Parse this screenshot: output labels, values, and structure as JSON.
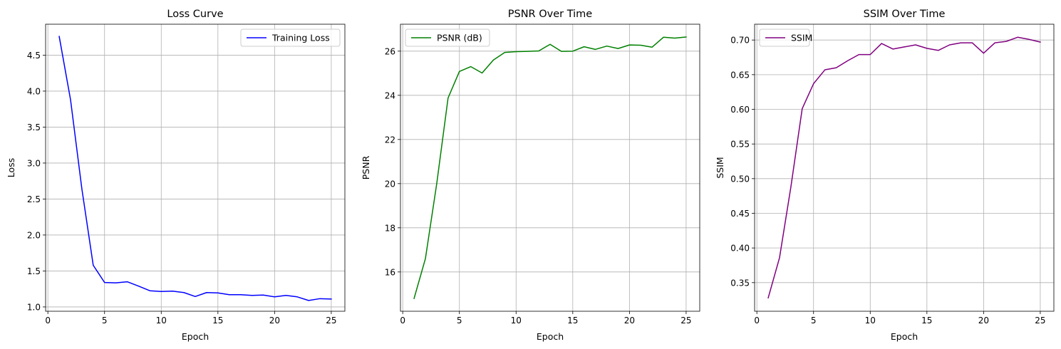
{
  "chart_data": [
    {
      "type": "line",
      "title": "Loss Curve",
      "xlabel": "Epoch",
      "ylabel": "Loss",
      "xlim": [
        -0.2,
        26.2
      ],
      "ylim": [
        0.94,
        4.93
      ],
      "xticks": [
        0,
        5,
        10,
        15,
        20,
        25
      ],
      "xtick_labels": [
        "0",
        "5",
        "10",
        "15",
        "20",
        "25"
      ],
      "yticks": [
        1.0,
        1.5,
        2.0,
        2.5,
        3.0,
        3.5,
        4.0,
        4.5
      ],
      "ytick_labels": [
        "1.0",
        "1.5",
        "2.0",
        "2.5",
        "3.0",
        "3.5",
        "4.0",
        "4.5"
      ],
      "grid": true,
      "legend": "upper-right",
      "series": [
        {
          "name": "Training Loss",
          "color": "#0000ff",
          "x": [
            1,
            2,
            3,
            4,
            5,
            6,
            7,
            8,
            9,
            10,
            11,
            12,
            13,
            14,
            15,
            16,
            17,
            18,
            19,
            20,
            21,
            22,
            23,
            24,
            25
          ],
          "values": [
            4.76,
            3.88,
            2.64,
            1.58,
            1.34,
            1.335,
            1.35,
            1.29,
            1.225,
            1.215,
            1.22,
            1.2,
            1.145,
            1.2,
            1.195,
            1.17,
            1.17,
            1.16,
            1.165,
            1.14,
            1.16,
            1.14,
            1.09,
            1.115,
            1.11
          ]
        }
      ]
    },
    {
      "type": "line",
      "title": "PSNR Over Time",
      "xlabel": "Epoch",
      "ylabel": "PSNR",
      "xlim": [
        -0.2,
        26.2
      ],
      "ylim": [
        14.22,
        27.22
      ],
      "xticks": [
        0,
        5,
        10,
        15,
        20,
        25
      ],
      "xtick_labels": [
        "0",
        "5",
        "10",
        "15",
        "20",
        "25"
      ],
      "yticks": [
        16,
        18,
        20,
        22,
        24,
        26
      ],
      "ytick_labels": [
        "16",
        "18",
        "20",
        "22",
        "24",
        "26"
      ],
      "grid": true,
      "legend": "upper-left",
      "series": [
        {
          "name": "PSNR (dB)",
          "color": "#008000",
          "x": [
            1,
            2,
            3,
            4,
            5,
            6,
            7,
            8,
            9,
            10,
            11,
            12,
            13,
            14,
            15,
            16,
            17,
            18,
            19,
            20,
            21,
            22,
            23,
            24,
            25
          ],
          "values": [
            14.8,
            16.6,
            20.0,
            23.88,
            25.08,
            25.3,
            25.01,
            25.6,
            25.94,
            25.98,
            25.99,
            26.01,
            26.31,
            25.99,
            26.0,
            26.2,
            26.08,
            26.23,
            26.12,
            26.28,
            26.27,
            26.18,
            26.63,
            26.59,
            26.64
          ]
        }
      ]
    },
    {
      "type": "line",
      "title": "SSIM Over Time",
      "xlabel": "Epoch",
      "ylabel": "SSIM",
      "xlim": [
        -0.2,
        26.2
      ],
      "ylim": [
        0.3087,
        0.7228
      ],
      "xticks": [
        0,
        5,
        10,
        15,
        20,
        25
      ],
      "xtick_labels": [
        "0",
        "5",
        "10",
        "15",
        "20",
        "25"
      ],
      "yticks": [
        0.35,
        0.4,
        0.45,
        0.5,
        0.55,
        0.6,
        0.65,
        0.7
      ],
      "ytick_labels": [
        "0.35",
        "0.40",
        "0.45",
        "0.50",
        "0.55",
        "0.60",
        "0.65",
        "0.70"
      ],
      "grid": true,
      "legend": "upper-left",
      "series": [
        {
          "name": "SSIM",
          "color": "#800080",
          "x": [
            1,
            2,
            3,
            4,
            5,
            6,
            7,
            8,
            9,
            10,
            11,
            12,
            13,
            14,
            15,
            16,
            17,
            18,
            19,
            20,
            21,
            22,
            23,
            24,
            25
          ],
          "values": [
            0.328,
            0.386,
            0.488,
            0.601,
            0.637,
            0.657,
            0.66,
            0.67,
            0.679,
            0.679,
            0.695,
            0.687,
            0.69,
            0.693,
            0.688,
            0.685,
            0.693,
            0.696,
            0.696,
            0.681,
            0.696,
            0.698,
            0.704,
            0.701,
            0.697
          ]
        }
      ]
    }
  ]
}
